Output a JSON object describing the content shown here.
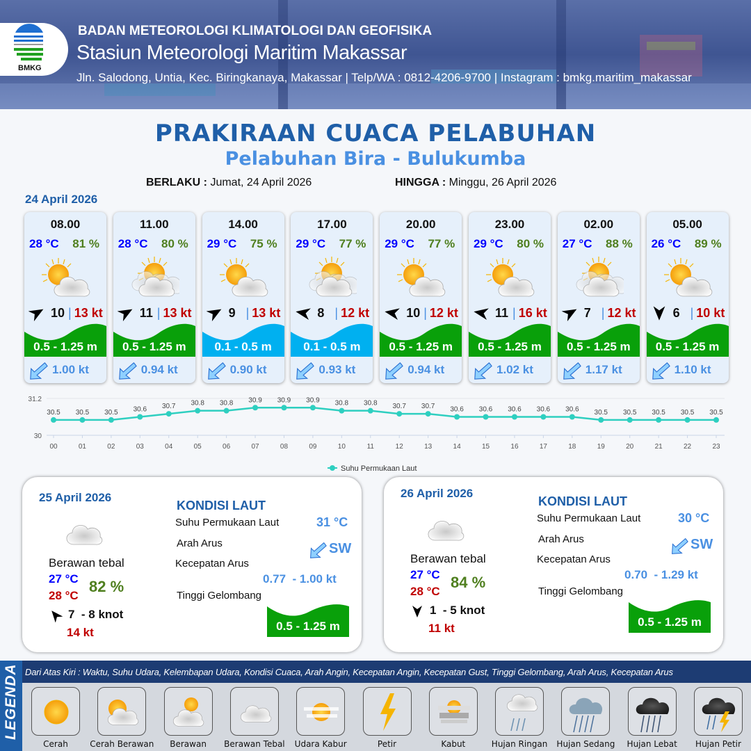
{
  "header": {
    "org": "BADAN METEOROLOGI KLIMATOLOGI DAN GEOFISIKA",
    "station": "Stasiun Meteorologi Maritim Makassar",
    "contact": "Jln. Salodong, Untia, Kec. Biringkanaya, Makassar | Telp/WA : 0812-4206-9700 | Instagram : bmkg.maritim_makassar",
    "logo_text": "BMKG"
  },
  "title": "PRAKIRAAN CUACA PELABUHAN",
  "subtitle": "Pelabuhan Bira - Bulukumba",
  "validity": {
    "from_label": "BERLAKU :",
    "from": "Jumat, 24 April 2026",
    "to_label": "HINGGA :",
    "to": "Minggu, 26 April 2026"
  },
  "day1": {
    "date": "24 April 2026"
  },
  "colors": {
    "temp": "#0000ff",
    "humidity": "#4f7f1f",
    "gust": "#c00000",
    "wave_moderate": "#09a00a",
    "wave_low": "#00b0f0",
    "current": "#4a90e2",
    "title": "#1f5fa8"
  },
  "forecast": [
    {
      "time": "08.00",
      "temp": "28 °C",
      "humidity": "81 %",
      "weather": "cerah-berawan",
      "wind_dir_deg": 60,
      "wind": "10",
      "gust": "13 kt",
      "wave": "0.5 - 1.25 m",
      "wave_level": "moderate",
      "current": "1.00 kt",
      "current_dir": "SW"
    },
    {
      "time": "11.00",
      "temp": "28 °C",
      "humidity": "80 %",
      "weather": "berawan",
      "wind_dir_deg": 60,
      "wind": "11",
      "gust": "13 kt",
      "wave": "0.5 - 1.25 m",
      "wave_level": "moderate",
      "current": "0.94 kt",
      "current_dir": "SW"
    },
    {
      "time": "14.00",
      "temp": "29 °C",
      "humidity": "75 %",
      "weather": "cerah-berawan",
      "wind_dir_deg": 60,
      "wind": "9",
      "gust": "13 kt",
      "wave": "0.1 - 0.5 m",
      "wave_level": "low",
      "current": "0.90 kt",
      "current_dir": "SW"
    },
    {
      "time": "17.00",
      "temp": "29 °C",
      "humidity": "77 %",
      "weather": "berawan",
      "wind_dir_deg": -80,
      "wind": "8",
      "gust": "12 kt",
      "wave": "0.1 - 0.5 m",
      "wave_level": "low",
      "current": "0.93 kt",
      "current_dir": "SW"
    },
    {
      "time": "20.00",
      "temp": "29 °C",
      "humidity": "77 %",
      "weather": "cerah-berawan",
      "wind_dir_deg": -80,
      "wind": "10",
      "gust": "12 kt",
      "wave": "0.5 - 1.25 m",
      "wave_level": "moderate",
      "current": "0.94 kt",
      "current_dir": "SW"
    },
    {
      "time": "23.00",
      "temp": "29 °C",
      "humidity": "80 %",
      "weather": "cerah-berawan",
      "wind_dir_deg": -80,
      "wind": "11",
      "gust": "16 kt",
      "wave": "0.5 - 1.25 m",
      "wave_level": "moderate",
      "current": "1.02 kt",
      "current_dir": "SW"
    },
    {
      "time": "02.00",
      "temp": "27 °C",
      "humidity": "88 %",
      "weather": "berawan",
      "wind_dir_deg": 60,
      "wind": "7",
      "gust": "12 kt",
      "wave": "0.5 - 1.25 m",
      "wave_level": "moderate",
      "current": "1.17 kt",
      "current_dir": "SW"
    },
    {
      "time": "05.00",
      "temp": "26 °C",
      "humidity": "89 %",
      "weather": "cerah-berawan",
      "wind_dir_deg": 180,
      "wind": "6",
      "gust": "10 kt",
      "wave": "0.5 - 1.25 m",
      "wave_level": "moderate",
      "current": "1.10 kt",
      "current_dir": "SW"
    }
  ],
  "chart_data": {
    "type": "line",
    "x": [
      "00",
      "01",
      "02",
      "03",
      "04",
      "05",
      "06",
      "07",
      "08",
      "09",
      "10",
      "11",
      "12",
      "13",
      "14",
      "15",
      "16",
      "17",
      "18",
      "19",
      "20",
      "21",
      "22",
      "23"
    ],
    "series": [
      {
        "name": "Suhu Permukaan Laut",
        "values": [
          30.5,
          30.5,
          30.5,
          30.6,
          30.7,
          30.8,
          30.8,
          30.9,
          30.9,
          30.9,
          30.8,
          30.8,
          30.7,
          30.7,
          30.6,
          30.6,
          30.6,
          30.6,
          30.6,
          30.5,
          30.5,
          30.5,
          30.5,
          30.5
        ],
        "color": "#2ecfc0"
      }
    ],
    "ylim": [
      30,
      31.2
    ],
    "yticks": [
      "30",
      "31.2"
    ],
    "legend": "bottom",
    "grid": true
  },
  "days": [
    {
      "date": "25 April 2026",
      "weather": "berawan-tebal",
      "condition": "Berawan tebal",
      "temp_min": "27 °C",
      "temp_max": "28 °C",
      "humidity": "82 %",
      "wind_dir_deg": -40,
      "wind": "7  - 8 knot",
      "gust": "14 kt",
      "sea": {
        "title": "KONDISI LAUT",
        "sst_label": "Suhu Permukaan Laut",
        "sst": "31 °C",
        "dir_label": "Arah Arus",
        "dir": "SW",
        "speed_label": "Kecepatan Arus",
        "speed": "0.77  - 1.00 kt",
        "wave_label": "Tinggi Gelombang",
        "wave": "0.5 - 1.25 m"
      }
    },
    {
      "date": "26 April 2026",
      "weather": "berawan-tebal",
      "condition": "Berawan tebal",
      "temp_min": "27 °C",
      "temp_max": "28 °C",
      "humidity": "84 %",
      "wind_dir_deg": 180,
      "wind": "1  - 5 knot",
      "gust": "11 kt",
      "sea": {
        "title": "KONDISI LAUT",
        "sst_label": "Suhu Permukaan Laut",
        "sst": "30 °C",
        "dir_label": "Arah Arus",
        "dir": "SW",
        "speed_label": "Kecepatan Arus",
        "speed": "0.70  - 1.29 kt",
        "wave_label": "Tinggi Gelombang",
        "wave": "0.5 - 1.25 m"
      }
    }
  ],
  "legend": {
    "title": "LEGENDA",
    "description": "Dari Atas Kiri : Waktu, Suhu Udara, Kelembapan Udara, Kondisi Cuaca, Arah Angin, Kecepatan Angin, Kecepatan Gust, Tinggi Gelombang, Arah Arus, Kecepatan Arus",
    "items": [
      {
        "label": "Cerah",
        "icon": "sun-icon"
      },
      {
        "label": "Cerah Berawan",
        "icon": "sun-cloud-icon"
      },
      {
        "label": "Berawan",
        "icon": "cloudy-icon"
      },
      {
        "label": "Berawan Tebal",
        "icon": "overcast-icon"
      },
      {
        "label": "Udara Kabur",
        "icon": "haze-icon"
      },
      {
        "label": "Petir",
        "icon": "lightning-icon"
      },
      {
        "label": "Kabut",
        "icon": "fog-icon"
      },
      {
        "label": "Hujan Ringan",
        "icon": "light-rain-icon"
      },
      {
        "label": "Hujan Sedang",
        "icon": "moderate-rain-icon"
      },
      {
        "label": "Hujan Lebat",
        "icon": "heavy-rain-icon"
      },
      {
        "label": "Hujan Petir",
        "icon": "thunderstorm-icon"
      }
    ]
  }
}
